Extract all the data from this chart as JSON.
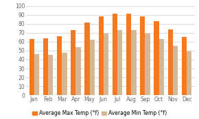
{
  "months": [
    "Jan",
    "Feb",
    "Mar",
    "Apr",
    "May",
    "Jun",
    "Jul",
    "Aug",
    "Sep",
    "Oct",
    "Nov",
    "Dec"
  ],
  "max_temp": [
    63,
    64,
    66,
    73,
    81,
    88,
    91,
    91,
    88,
    83,
    74,
    65
  ],
  "min_temp": [
    46,
    45,
    48,
    54,
    62,
    69,
    73,
    73,
    69,
    63,
    55,
    49
  ],
  "max_color": "#F47920",
  "min_color": "#D4B896",
  "background_color": "#ffffff",
  "grid_color": "#cccccc",
  "ylim": [
    0,
    100
  ],
  "yticks": [
    0,
    10,
    20,
    30,
    40,
    50,
    60,
    70,
    80,
    90,
    100
  ],
  "legend_max": "Average Max Temp (°f)",
  "legend_min": "Average Min Temp (°f)",
  "bar_width": 0.36,
  "tick_fontsize": 5.5,
  "legend_fontsize": 5.5
}
